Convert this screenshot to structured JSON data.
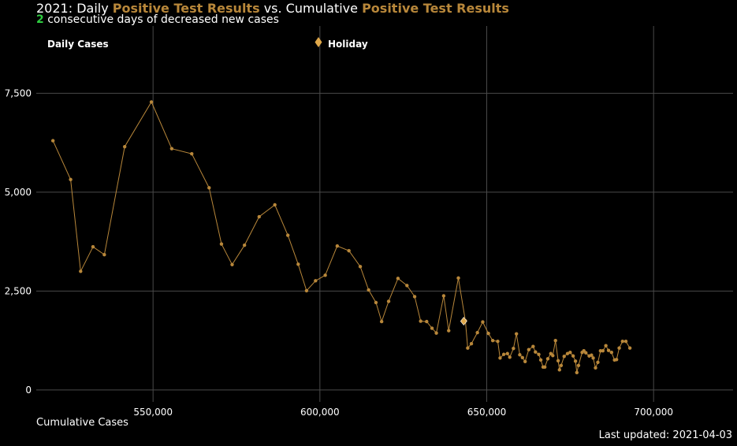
{
  "header": {
    "year_prefix": "2021: Daily ",
    "metric_a": "Positive Test Results",
    "versus": " vs. Cumulative ",
    "metric_b": "Positive Test Results",
    "streak_count": "2",
    "streak_text": " consecutive days of decreased new cases"
  },
  "footer": {
    "last_updated": "Last updated: 2021-04-03"
  },
  "colors": {
    "background": "#000000",
    "series": "#b8873a",
    "holiday": "#e0a84a",
    "grid": "#4a4a4a",
    "highlight_number": "#2ecc40"
  },
  "chart_data": {
    "type": "line",
    "xlabel": "Cumulative Cases",
    "ylabel": "",
    "xlim": [
      515000,
      725000
    ],
    "ylim": [
      -300,
      9200
    ],
    "grid": true,
    "x_ticks": [
      550000,
      600000,
      650000,
      700000
    ],
    "x_tick_labels": [
      "550,000",
      "600,000",
      "650,000",
      "700,000"
    ],
    "y_ticks": [
      0,
      2500,
      5000,
      7500
    ],
    "y_tick_labels": [
      "0",
      "2,500",
      "5,000",
      "7,500"
    ],
    "legend": [
      {
        "label": "Daily Cases",
        "marker": "none"
      },
      {
        "label": "Holiday",
        "marker": "diamond"
      }
    ],
    "series": [
      {
        "name": "Daily Cases",
        "points": [
          [
            520000,
            6300
          ],
          [
            525300,
            5320
          ],
          [
            528300,
            3000
          ],
          [
            532000,
            3620
          ],
          [
            535400,
            3420
          ],
          [
            541500,
            6150
          ],
          [
            549500,
            7280
          ],
          [
            555600,
            6100
          ],
          [
            561600,
            5970
          ],
          [
            566800,
            5110
          ],
          [
            570500,
            3690
          ],
          [
            573700,
            3170
          ],
          [
            577400,
            3660
          ],
          [
            581800,
            4380
          ],
          [
            586500,
            4680
          ],
          [
            590400,
            3910
          ],
          [
            593500,
            3180
          ],
          [
            596000,
            2510
          ],
          [
            598700,
            2760
          ],
          [
            601600,
            2900
          ],
          [
            605200,
            3640
          ],
          [
            608700,
            3520
          ],
          [
            612100,
            3120
          ],
          [
            614600,
            2530
          ],
          [
            616800,
            2210
          ],
          [
            618500,
            1730
          ],
          [
            620600,
            2240
          ],
          [
            623400,
            2820
          ],
          [
            626100,
            2640
          ],
          [
            628400,
            2360
          ],
          [
            630200,
            1740
          ],
          [
            632000,
            1730
          ],
          [
            633600,
            1560
          ],
          [
            634900,
            1440
          ],
          [
            637100,
            2380
          ],
          [
            638600,
            1500
          ],
          [
            641500,
            2830
          ],
          [
            643600,
            1750
          ],
          [
            644300,
            1060
          ],
          [
            645400,
            1170
          ],
          [
            647200,
            1450
          ],
          [
            648800,
            1720
          ],
          [
            650500,
            1430
          ],
          [
            651800,
            1250
          ],
          [
            653300,
            1230
          ],
          [
            654000,
            810
          ],
          [
            655100,
            900
          ],
          [
            656200,
            920
          ],
          [
            656900,
            830
          ],
          [
            658000,
            1050
          ],
          [
            658900,
            1420
          ],
          [
            659900,
            890
          ],
          [
            660700,
            820
          ],
          [
            661500,
            720
          ],
          [
            662600,
            1020
          ],
          [
            663900,
            1100
          ],
          [
            664600,
            960
          ],
          [
            665600,
            900
          ],
          [
            666200,
            760
          ],
          [
            666900,
            580
          ],
          [
            667400,
            580
          ],
          [
            668300,
            790
          ],
          [
            669200,
            920
          ],
          [
            669800,
            870
          ],
          [
            670600,
            1250
          ],
          [
            671400,
            740
          ],
          [
            671800,
            510
          ],
          [
            672300,
            620
          ],
          [
            673200,
            850
          ],
          [
            674200,
            920
          ],
          [
            675000,
            950
          ],
          [
            675900,
            860
          ],
          [
            676600,
            730
          ],
          [
            677000,
            440
          ],
          [
            677500,
            620
          ],
          [
            678600,
            950
          ],
          [
            679100,
            990
          ],
          [
            679700,
            940
          ],
          [
            680700,
            860
          ],
          [
            681400,
            880
          ],
          [
            681900,
            810
          ],
          [
            682600,
            560
          ],
          [
            683300,
            700
          ],
          [
            684100,
            990
          ],
          [
            684800,
            990
          ],
          [
            685700,
            1120
          ],
          [
            686500,
            1000
          ],
          [
            687400,
            950
          ],
          [
            688300,
            760
          ],
          [
            688900,
            770
          ],
          [
            689700,
            1060
          ],
          [
            690700,
            1230
          ],
          [
            691700,
            1230
          ],
          [
            692900,
            1060
          ]
        ]
      }
    ],
    "holidays": [
      {
        "x": 643100,
        "y": 1740
      }
    ]
  }
}
